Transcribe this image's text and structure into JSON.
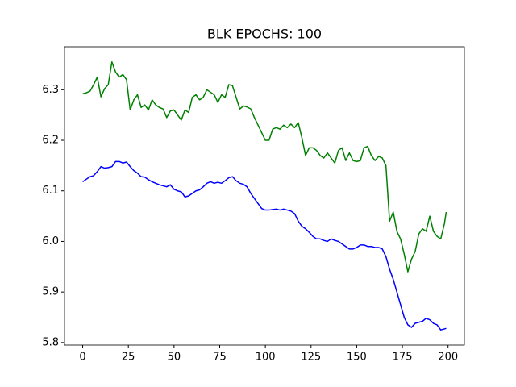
{
  "chart_data": {
    "type": "line",
    "title": "BLK EPOCHS: 100",
    "x": [
      0,
      2,
      4,
      6,
      8,
      10,
      12,
      14,
      16,
      18,
      20,
      22,
      24,
      26,
      28,
      30,
      32,
      34,
      36,
      38,
      40,
      42,
      44,
      46,
      48,
      50,
      52,
      54,
      56,
      58,
      60,
      62,
      64,
      66,
      68,
      70,
      72,
      74,
      76,
      78,
      80,
      82,
      84,
      86,
      88,
      90,
      92,
      94,
      96,
      98,
      100,
      102,
      104,
      106,
      108,
      110,
      112,
      114,
      116,
      118,
      120,
      122,
      124,
      126,
      128,
      130,
      132,
      134,
      136,
      138,
      140,
      142,
      144,
      146,
      148,
      150,
      152,
      154,
      156,
      158,
      160,
      162,
      164,
      166,
      168,
      170,
      172,
      174,
      176,
      178,
      180,
      182,
      184,
      186,
      188,
      190,
      192,
      194,
      196,
      198,
      199
    ],
    "series": [
      {
        "color": "#008000",
        "values": [
          6.292,
          6.294,
          6.297,
          6.31,
          6.325,
          6.286,
          6.302,
          6.31,
          6.355,
          6.335,
          6.325,
          6.33,
          6.32,
          6.26,
          6.28,
          6.29,
          6.265,
          6.27,
          6.26,
          6.28,
          6.27,
          6.265,
          6.262,
          6.245,
          6.258,
          6.26,
          6.25,
          6.24,
          6.26,
          6.255,
          6.285,
          6.29,
          6.28,
          6.285,
          6.3,
          6.295,
          6.29,
          6.275,
          6.29,
          6.285,
          6.31,
          6.308,
          6.285,
          6.262,
          6.268,
          6.266,
          6.262,
          6.245,
          6.23,
          6.215,
          6.2,
          6.2,
          6.222,
          6.225,
          6.222,
          6.23,
          6.225,
          6.232,
          6.225,
          6.235,
          6.205,
          6.17,
          6.185,
          6.185,
          6.18,
          6.17,
          6.165,
          6.175,
          6.165,
          6.155,
          6.18,
          6.185,
          6.16,
          6.175,
          6.16,
          6.158,
          6.16,
          6.185,
          6.188,
          6.17,
          6.16,
          6.168,
          6.165,
          6.15,
          6.04,
          6.058,
          6.02,
          6.005,
          5.975,
          5.94,
          5.965,
          5.98,
          6.015,
          6.025,
          6.02,
          6.05,
          6.02,
          6.01,
          6.005,
          6.035,
          6.058
        ]
      },
      {
        "color": "#0000ff",
        "values": [
          6.118,
          6.123,
          6.128,
          6.13,
          6.138,
          6.148,
          6.145,
          6.146,
          6.148,
          6.158,
          6.158,
          6.155,
          6.157,
          6.148,
          6.14,
          6.135,
          6.128,
          6.127,
          6.122,
          6.118,
          6.115,
          6.112,
          6.11,
          6.108,
          6.112,
          6.103,
          6.1,
          6.098,
          6.088,
          6.09,
          6.095,
          6.1,
          6.102,
          6.108,
          6.115,
          6.118,
          6.115,
          6.117,
          6.115,
          6.12,
          6.126,
          6.128,
          6.12,
          6.115,
          6.113,
          6.108,
          6.095,
          6.085,
          6.075,
          6.065,
          6.062,
          6.062,
          6.063,
          6.064,
          6.062,
          6.064,
          6.062,
          6.06,
          6.055,
          6.04,
          6.03,
          6.025,
          6.018,
          6.01,
          6.005,
          6.005,
          6.002,
          6.0,
          6.005,
          6.002,
          6.0,
          5.995,
          5.99,
          5.985,
          5.985,
          5.988,
          5.993,
          5.993,
          5.99,
          5.99,
          5.988,
          5.988,
          5.985,
          5.97,
          5.945,
          5.925,
          5.9,
          5.875,
          5.85,
          5.835,
          5.83,
          5.838,
          5.84,
          5.842,
          5.848,
          5.845,
          5.838,
          5.835,
          5.825,
          5.827,
          5.828
        ]
      }
    ],
    "xlim": [
      -9.95,
      208.95
    ],
    "xticks": [
      0,
      25,
      50,
      75,
      100,
      125,
      150,
      175,
      200
    ],
    "ylim": [
      5.795,
      6.385
    ],
    "yticks": [
      5.8,
      5.9,
      {
        "value": 6,
        "label": "6.0"
      },
      6.1,
      6.2,
      6.3
    ],
    "grid": false
  }
}
